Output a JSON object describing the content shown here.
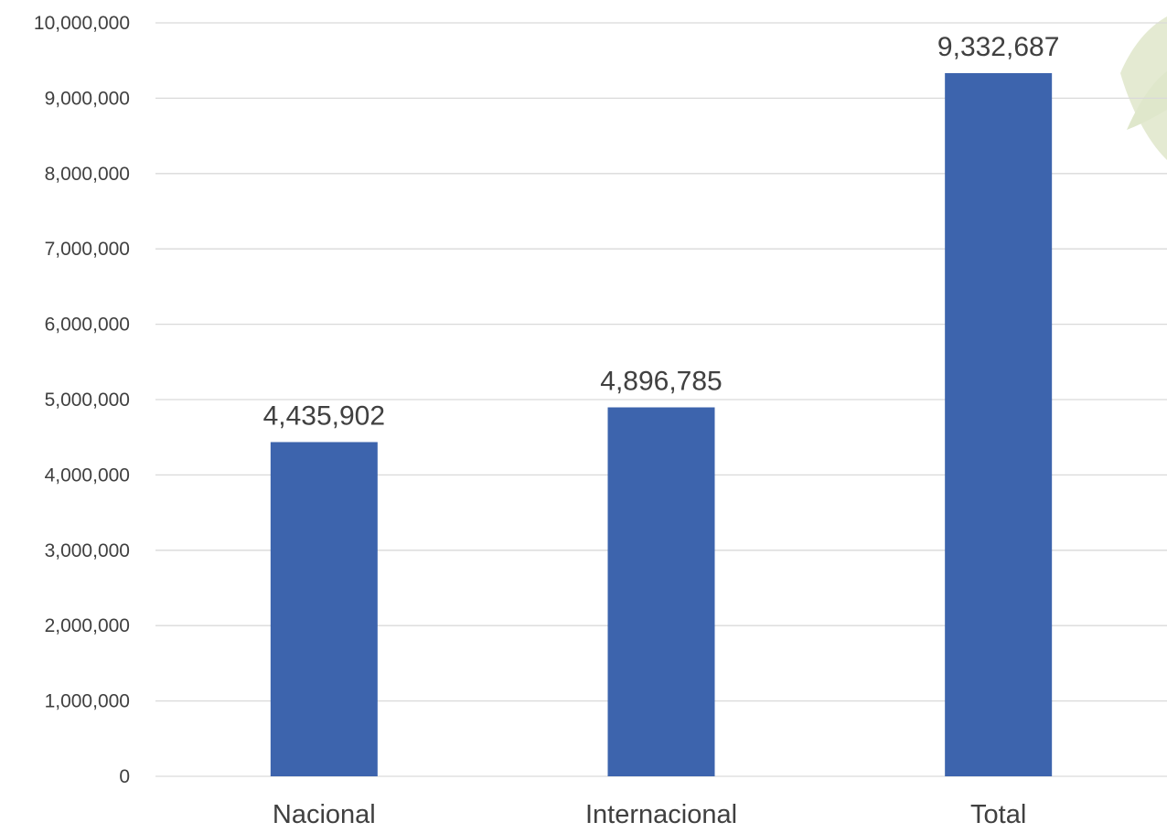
{
  "chart_data": {
    "type": "bar",
    "categories": [
      "Nacional",
      "Internacional",
      "Total"
    ],
    "values": [
      4435902,
      4896785,
      9332687
    ],
    "data_labels": [
      "4,435,902",
      "4,896,785",
      "9,332,687"
    ],
    "y_tick_labels": [
      "0",
      "1,000,000",
      "2,000,000",
      "3,000,000",
      "4,000,000",
      "5,000,000",
      "6,000,000",
      "7,000,000",
      "8,000,000",
      "9,000,000",
      "10,000,000"
    ],
    "ylim": [
      0,
      10000000
    ],
    "grid": true,
    "legend": "none",
    "bar_color": "#3D64AD"
  }
}
